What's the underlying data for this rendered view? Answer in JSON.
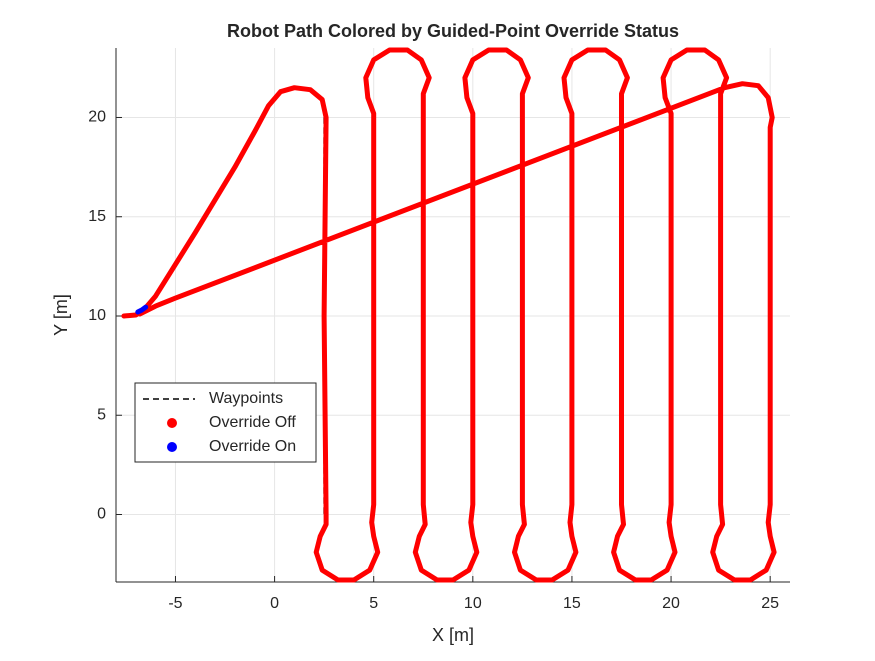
{
  "chart_data": {
    "type": "line",
    "title": "Robot Path Colored by Guided-Point Override Status",
    "x_label": "X [m]",
    "y_label": "Y [m]",
    "xlim": [
      -8,
      26
    ],
    "ylim": [
      -3.4,
      23.5
    ],
    "xticks": [
      -5,
      0,
      5,
      10,
      15,
      20,
      25
    ],
    "yticks": [
      0,
      5,
      10,
      15,
      20
    ],
    "grid": true,
    "legend": "lower left",
    "series": [
      {
        "name": "Waypoints",
        "color": "#000000",
        "style": "dashed",
        "x": [
          2.5,
          2.5,
          null,
          5,
          5,
          null,
          7.5,
          7.5,
          null,
          10,
          10,
          null,
          12.5,
          12.5,
          null,
          15,
          15,
          null,
          17.5,
          17.5,
          null,
          20,
          20,
          null,
          22.5,
          22.5,
          null,
          25,
          25
        ],
        "y": [
          20,
          0,
          null,
          0,
          20,
          null,
          20,
          0,
          null,
          0,
          20,
          null,
          20,
          0,
          null,
          0,
          20,
          null,
          20,
          0,
          null,
          0,
          20,
          null,
          20,
          0,
          null,
          0,
          20
        ]
      },
      {
        "name": "Override Off",
        "color": "#ff0000",
        "style": "marker",
        "x": [
          -7.6,
          -7,
          -6.6,
          -6,
          -4,
          -2,
          -1,
          -0.3,
          0.3,
          1,
          1.8,
          2.4,
          2.6,
          2.5,
          2.6,
          2.6,
          2.3,
          2.1,
          2.4,
          3.2,
          4,
          4.8,
          5.2,
          5,
          4.9,
          5,
          5,
          5,
          4.7,
          4.6,
          5,
          5.8,
          6.7,
          7.4,
          7.8,
          7.5,
          7.5,
          7.5,
          7.6,
          7.3,
          7.1,
          7.4,
          8.2,
          9,
          9.8,
          10.2,
          10,
          9.9,
          10,
          10,
          10,
          9.7,
          9.6,
          10,
          10.8,
          11.7,
          12.4,
          12.8,
          12.5,
          12.5,
          12.5,
          12.6,
          12.3,
          12.1,
          12.4,
          13.2,
          14,
          14.8,
          15.2,
          15,
          14.9,
          15,
          15,
          15,
          14.7,
          14.6,
          15,
          15.8,
          16.7,
          17.4,
          17.8,
          17.5,
          17.5,
          17.5,
          17.6,
          17.3,
          17.1,
          17.4,
          18.2,
          19,
          19.8,
          20.2,
          20,
          19.9,
          20,
          20,
          20,
          19.7,
          19.6,
          20,
          20.8,
          21.7,
          22.4,
          22.8,
          22.5,
          22.5,
          22.5,
          22.6,
          22.3,
          22.1,
          22.4,
          23.2,
          24,
          24.8,
          25.2,
          25,
          24.9,
          25,
          25,
          25.1,
          24.9,
          24.4,
          23.6,
          22.7,
          -5,
          -6,
          -6.8
        ],
        "y": [
          10,
          10.05,
          10.3,
          11,
          14.2,
          17.5,
          19.3,
          20.6,
          21.3,
          21.5,
          21.4,
          20.9,
          20,
          10,
          0,
          -0.5,
          -1.1,
          -1.9,
          -2.8,
          -3.3,
          -3.3,
          -2.8,
          -1.9,
          -1.1,
          -0.4,
          0.5,
          19.5,
          20.2,
          21,
          22,
          22.9,
          23.4,
          23.4,
          22.9,
          22,
          21.2,
          20.3,
          0.5,
          -0.5,
          -1.1,
          -1.9,
          -2.8,
          -3.3,
          -3.3,
          -2.8,
          -1.9,
          -1.1,
          -0.4,
          0.5,
          19.5,
          20.2,
          21,
          22,
          22.9,
          23.4,
          23.4,
          22.9,
          22,
          21.2,
          20.3,
          0.5,
          -0.5,
          -1.1,
          -1.9,
          -2.8,
          -3.3,
          -3.3,
          -2.8,
          -1.9,
          -1.1,
          -0.4,
          0.5,
          19.5,
          20.2,
          21,
          22,
          22.9,
          23.4,
          23.4,
          22.9,
          22,
          21.2,
          20.3,
          0.5,
          -0.5,
          -1.1,
          -1.9,
          -2.8,
          -3.3,
          -3.3,
          -2.8,
          -1.9,
          -1.1,
          -0.4,
          0.5,
          19.5,
          20.2,
          21,
          22,
          22.9,
          23.4,
          23.4,
          22.9,
          22,
          21.2,
          20.3,
          0.5,
          -0.5,
          -1.1,
          -1.9,
          -2.8,
          -3.3,
          -3.3,
          -2.8,
          -1.9,
          -1.1,
          -0.4,
          0.5,
          19.5,
          20,
          21,
          21.6,
          21.7,
          21.5,
          10.9,
          10.5,
          10.1
        ]
      },
      {
        "name": "Override On",
        "color": "#0000ff",
        "style": "marker",
        "x": [
          -6.9,
          -6.7,
          -6.5
        ],
        "y": [
          10.2,
          10.3,
          10.45
        ]
      }
    ]
  }
}
